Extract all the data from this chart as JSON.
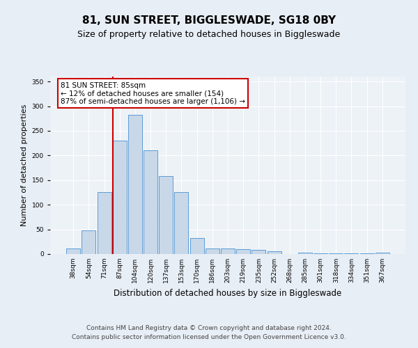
{
  "title": "81, SUN STREET, BIGGLESWADE, SG18 0BY",
  "subtitle": "Size of property relative to detached houses in Biggleswade",
  "xlabel": "Distribution of detached houses by size in Biggleswade",
  "ylabel": "Number of detached properties",
  "bar_labels": [
    "38sqm",
    "54sqm",
    "71sqm",
    "87sqm",
    "104sqm",
    "120sqm",
    "137sqm",
    "153sqm",
    "170sqm",
    "186sqm",
    "203sqm",
    "219sqm",
    "235sqm",
    "252sqm",
    "268sqm",
    "285sqm",
    "301sqm",
    "318sqm",
    "334sqm",
    "351sqm",
    "367sqm"
  ],
  "bar_values": [
    11,
    48,
    126,
    230,
    283,
    211,
    158,
    126,
    33,
    11,
    11,
    10,
    8,
    6,
    0,
    3,
    2,
    2,
    2,
    2,
    3
  ],
  "bar_color": "#c8d8e8",
  "bar_edge_color": "#5b9bd5",
  "vline_index": 3,
  "vline_color": "#cc0000",
  "ylim": [
    0,
    360
  ],
  "yticks": [
    0,
    50,
    100,
    150,
    200,
    250,
    300,
    350
  ],
  "annotation_title": "81 SUN STREET: 85sqm",
  "annotation_line1": "← 12% of detached houses are smaller (154)",
  "annotation_line2": "87% of semi-detached houses are larger (1,106) →",
  "annotation_box_facecolor": "#ffffff",
  "annotation_box_edgecolor": "#cc0000",
  "footer_line1": "Contains HM Land Registry data © Crown copyright and database right 2024.",
  "footer_line2": "Contains public sector information licensed under the Open Government Licence v3.0.",
  "bg_color": "#e8eef5",
  "plot_bg_color": "#edf2f7",
  "grid_color": "#ffffff",
  "title_fontsize": 11,
  "subtitle_fontsize": 9,
  "xlabel_fontsize": 8.5,
  "ylabel_fontsize": 8,
  "tick_fontsize": 6.5,
  "annot_fontsize": 7.5,
  "footer_fontsize": 6.5
}
